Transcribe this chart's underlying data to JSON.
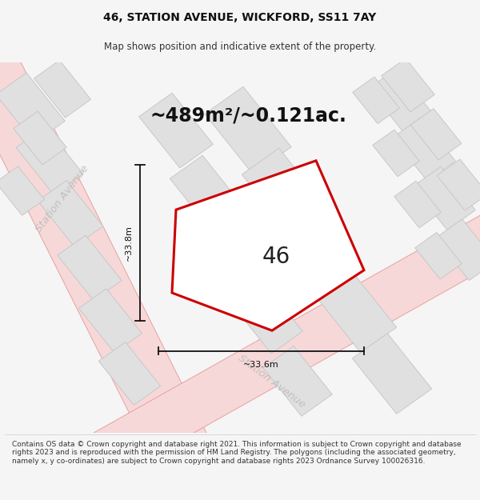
{
  "title": "46, STATION AVENUE, WICKFORD, SS11 7AY",
  "subtitle": "Map shows position and indicative extent of the property.",
  "area_label": "~489m²/~0.121ac.",
  "property_number": "46",
  "dim_vertical": "~33.8m",
  "dim_horizontal": "~33.6m",
  "street_label_left": "Station Avenue",
  "street_label_bottom": "Station Avenue",
  "footer": "Contains OS data © Crown copyright and database right 2021. This information is subject to Crown copyright and database rights 2023 and is reproduced with the permission of HM Land Registry. The polygons (including the associated geometry, namely x, y co-ordinates) are subject to Crown copyright and database rights 2023 Ordnance Survey 100026316.",
  "bg_color": "#f5f5f5",
  "title_fontsize": 10,
  "subtitle_fontsize": 8.5,
  "area_fontsize": 17,
  "number_fontsize": 20,
  "dim_fontsize": 8,
  "street_fontsize": 9.5,
  "footer_fontsize": 6.5,
  "road_fill": "#f7d8d8",
  "road_edge": "#e8a0a0",
  "building_fill": "#e0e0e0",
  "building_edge": "#c8c8c8",
  "plot_edge": "#cc0000",
  "plot_fill": "#ffffff",
  "street_text_color": "#c0c0c0",
  "dim_color": "#111111",
  "map_fill": "#f0f0f0"
}
